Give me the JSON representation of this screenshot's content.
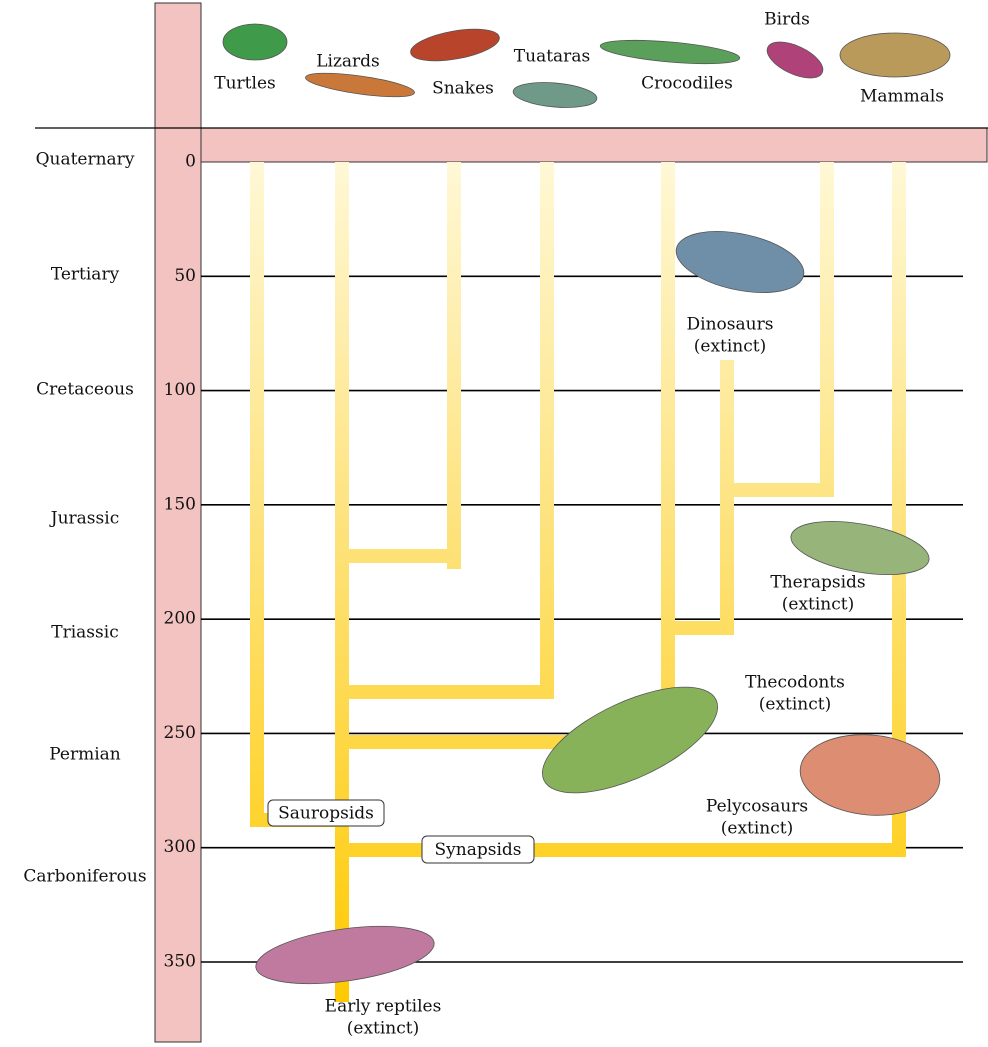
{
  "periods": [
    "Quaternary",
    "Tertiary",
    "Cretaceous",
    "Jurassic",
    "Triassic",
    "Permian",
    "Carboniferous"
  ],
  "time_axis": {
    "ticks": [
      0,
      50,
      100,
      150,
      200,
      250,
      300,
      350
    ]
  },
  "living_groups": [
    "Turtles",
    "Lizards",
    "Snakes",
    "Tuataras",
    "Crocodiles",
    "Birds",
    "Mammals"
  ],
  "extinct_groups": [
    {
      "name": "Dinosaurs",
      "note": "(extinct)"
    },
    {
      "name": "Therapsids",
      "note": "(extinct)"
    },
    {
      "name": "Thecodonts",
      "note": "(extinct)"
    },
    {
      "name": "Pelycosaurs",
      "note": "(extinct)"
    },
    {
      "name": "Early reptiles",
      "note": "(extinct)"
    }
  ],
  "clades": [
    "Sauropsids",
    "Synapsids"
  ]
}
